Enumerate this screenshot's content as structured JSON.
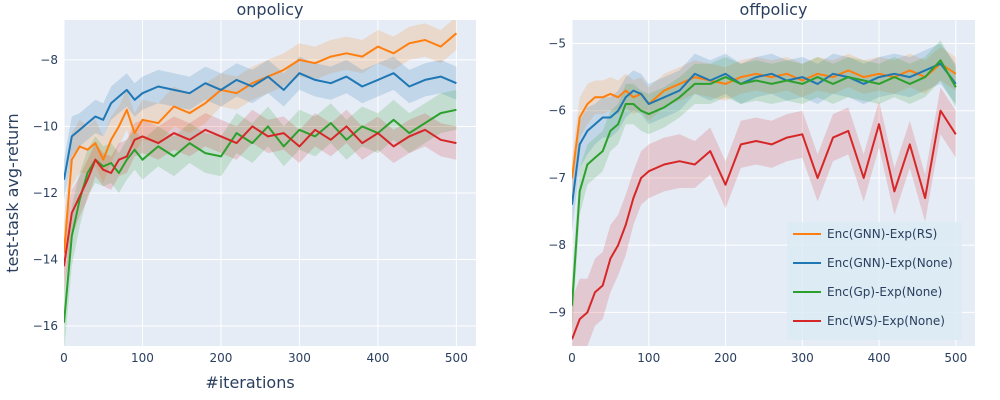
{
  "chart_data": [
    {
      "type": "line",
      "title": "onpolicy",
      "xlabel": "#iterations",
      "ylabel": "test-task avg-return",
      "xlim": [
        0,
        525
      ],
      "ylim": [
        -16.6,
        -6.8
      ],
      "xticks": [
        0,
        100,
        200,
        300,
        400,
        500
      ],
      "yticks": [
        -16,
        -14,
        -12,
        -10,
        -8
      ],
      "xtick_labels": [
        "0",
        "100",
        "200",
        "300",
        "400",
        "500"
      ],
      "ytick_labels": [
        "−16",
        "−14",
        "−12",
        "−10",
        "−8"
      ],
      "grid": true,
      "x": [
        0,
        10,
        20,
        30,
        40,
        50,
        60,
        70,
        80,
        90,
        100,
        120,
        140,
        160,
        180,
        200,
        220,
        240,
        260,
        280,
        300,
        320,
        340,
        360,
        380,
        400,
        420,
        440,
        460,
        480,
        500
      ],
      "series": [
        {
          "name": "Enc(GNN)-Exp(RS)",
          "color": "#ff7f0e",
          "values": [
            -13.8,
            -11.0,
            -10.6,
            -10.7,
            -10.5,
            -11.0,
            -10.4,
            -10.0,
            -9.5,
            -10.2,
            -9.8,
            -9.9,
            -9.4,
            -9.6,
            -9.3,
            -8.9,
            -9.0,
            -8.7,
            -8.5,
            -8.3,
            -8.0,
            -8.1,
            -7.9,
            -7.8,
            -7.9,
            -7.6,
            -7.8,
            -7.5,
            -7.4,
            -7.6,
            -7.2
          ],
          "spread": [
            0.9,
            0.8,
            0.8,
            0.7,
            0.7,
            0.7,
            0.7,
            0.6,
            0.6,
            0.6,
            0.6,
            0.6,
            0.6,
            0.6,
            0.6,
            0.5,
            0.5,
            0.5,
            0.5,
            0.5,
            0.5,
            0.5,
            0.5,
            0.5,
            0.5,
            0.5,
            0.5,
            0.5,
            0.5,
            0.5,
            0.5
          ]
        },
        {
          "name": "Enc(GNN)-Exp(None)",
          "color": "#1f77b4",
          "values": [
            -11.6,
            -10.3,
            -10.1,
            -9.9,
            -9.7,
            -9.8,
            -9.3,
            -9.1,
            -8.9,
            -9.2,
            -9.0,
            -8.8,
            -8.9,
            -9.0,
            -8.7,
            -8.9,
            -8.6,
            -8.8,
            -8.5,
            -8.9,
            -8.4,
            -8.6,
            -8.7,
            -8.5,
            -8.8,
            -8.6,
            -8.4,
            -8.8,
            -8.6,
            -8.5,
            -8.7
          ],
          "spread": [
            0.6,
            0.6,
            0.5,
            0.5,
            0.5,
            0.5,
            0.5,
            0.5,
            0.5,
            0.5,
            0.5,
            0.5,
            0.5,
            0.5,
            0.5,
            0.5,
            0.5,
            0.5,
            0.5,
            0.5,
            0.5,
            0.5,
            0.5,
            0.5,
            0.5,
            0.5,
            0.5,
            0.5,
            0.5,
            0.5,
            0.5
          ]
        },
        {
          "name": "Enc(Gp)-Exp(None)",
          "color": "#2ca02c",
          "values": [
            -15.9,
            -13.3,
            -12.2,
            -11.4,
            -11.0,
            -11.2,
            -11.1,
            -11.4,
            -11.0,
            -10.7,
            -11.0,
            -10.6,
            -10.9,
            -10.5,
            -10.8,
            -10.9,
            -10.2,
            -10.5,
            -10.0,
            -10.6,
            -10.1,
            -10.3,
            -9.9,
            -10.4,
            -10.0,
            -10.2,
            -9.8,
            -10.2,
            -9.9,
            -9.6,
            -9.5
          ],
          "spread": [
            0.9,
            0.9,
            0.8,
            0.7,
            0.7,
            0.6,
            0.6,
            0.6,
            0.6,
            0.6,
            0.6,
            0.6,
            0.6,
            0.6,
            0.6,
            0.6,
            0.6,
            0.6,
            0.6,
            0.6,
            0.6,
            0.6,
            0.6,
            0.6,
            0.6,
            0.6,
            0.6,
            0.6,
            0.6,
            0.6,
            0.6
          ]
        },
        {
          "name": "Enc(WS)-Exp(None)",
          "color": "#d62728",
          "values": [
            -14.2,
            -12.6,
            -12.1,
            -11.6,
            -11.0,
            -11.3,
            -11.4,
            -11.0,
            -10.9,
            -10.4,
            -10.3,
            -10.5,
            -10.2,
            -10.4,
            -10.1,
            -10.3,
            -10.5,
            -10.0,
            -10.3,
            -10.2,
            -10.6,
            -10.1,
            -10.4,
            -10.0,
            -10.5,
            -10.2,
            -10.6,
            -10.3,
            -10.1,
            -10.4,
            -10.5
          ],
          "spread": [
            0.8,
            0.7,
            0.6,
            0.6,
            0.5,
            0.5,
            0.5,
            0.5,
            0.5,
            0.5,
            0.5,
            0.5,
            0.5,
            0.5,
            0.5,
            0.5,
            0.5,
            0.5,
            0.5,
            0.5,
            0.5,
            0.5,
            0.5,
            0.5,
            0.5,
            0.5,
            0.5,
            0.5,
            0.5,
            0.5,
            0.5
          ]
        }
      ]
    },
    {
      "type": "line",
      "title": "offpolicy",
      "xlabel": "",
      "ylabel": "",
      "xlim": [
        0,
        525
      ],
      "ylim": [
        -9.5,
        -4.65
      ],
      "xticks": [
        0,
        100,
        200,
        300,
        400,
        500
      ],
      "yticks": [
        -9,
        -8,
        -7,
        -6,
        -5
      ],
      "xtick_labels": [
        "0",
        "100",
        "200",
        "300",
        "400",
        "500"
      ],
      "ytick_labels": [
        "−9",
        "−8",
        "−7",
        "−6",
        "−5"
      ],
      "grid": true,
      "legend_position": "bottom-right",
      "x": [
        0,
        10,
        20,
        30,
        40,
        50,
        60,
        70,
        80,
        90,
        100,
        120,
        140,
        160,
        180,
        200,
        220,
        240,
        260,
        280,
        300,
        320,
        340,
        360,
        380,
        400,
        420,
        440,
        460,
        480,
        500
      ],
      "series": [
        {
          "name": "Enc(GNN)-Exp(RS)",
          "color": "#ff7f0e",
          "values": [
            -7.0,
            -6.1,
            -5.9,
            -5.8,
            -5.8,
            -5.75,
            -5.8,
            -5.7,
            -5.8,
            -5.75,
            -5.9,
            -5.7,
            -5.6,
            -5.5,
            -5.55,
            -5.6,
            -5.5,
            -5.45,
            -5.5,
            -5.45,
            -5.55,
            -5.45,
            -5.5,
            -5.4,
            -5.5,
            -5.45,
            -5.5,
            -5.4,
            -5.5,
            -5.3,
            -5.45
          ],
          "spread": [
            0.3,
            0.3,
            0.3,
            0.25,
            0.25,
            0.25,
            0.25,
            0.25,
            0.25,
            0.25,
            0.25,
            0.25,
            0.25,
            0.25,
            0.25,
            0.25,
            0.25,
            0.25,
            0.25,
            0.25,
            0.25,
            0.25,
            0.25,
            0.25,
            0.25,
            0.25,
            0.25,
            0.25,
            0.25,
            0.25,
            0.25
          ]
        },
        {
          "name": "Enc(GNN)-Exp(None)",
          "color": "#1f77b4",
          "values": [
            -7.4,
            -6.5,
            -6.3,
            -6.2,
            -6.1,
            -6.1,
            -6.0,
            -5.8,
            -5.7,
            -5.75,
            -5.9,
            -5.8,
            -5.7,
            -5.45,
            -5.55,
            -5.45,
            -5.6,
            -5.5,
            -5.45,
            -5.55,
            -5.5,
            -5.6,
            -5.45,
            -5.5,
            -5.6,
            -5.5,
            -5.45,
            -5.5,
            -5.4,
            -5.3,
            -5.6
          ],
          "spread": [
            0.4,
            0.35,
            0.35,
            0.3,
            0.3,
            0.3,
            0.3,
            0.3,
            0.3,
            0.3,
            0.3,
            0.3,
            0.3,
            0.3,
            0.3,
            0.3,
            0.3,
            0.3,
            0.3,
            0.3,
            0.3,
            0.3,
            0.3,
            0.3,
            0.3,
            0.3,
            0.3,
            0.3,
            0.3,
            0.3,
            0.3
          ]
        },
        {
          "name": "Enc(Gp)-Exp(None)",
          "color": "#2ca02c",
          "values": [
            -8.9,
            -7.2,
            -6.8,
            -6.7,
            -6.6,
            -6.3,
            -6.2,
            -5.9,
            -5.9,
            -6.0,
            -6.05,
            -5.95,
            -5.8,
            -5.6,
            -5.6,
            -5.5,
            -5.6,
            -5.55,
            -5.6,
            -5.55,
            -5.6,
            -5.5,
            -5.6,
            -5.5,
            -5.55,
            -5.6,
            -5.5,
            -5.6,
            -5.5,
            -5.25,
            -5.65
          ],
          "spread": [
            0.4,
            0.35,
            0.3,
            0.3,
            0.3,
            0.3,
            0.3,
            0.3,
            0.3,
            0.3,
            0.3,
            0.3,
            0.3,
            0.3,
            0.3,
            0.3,
            0.3,
            0.3,
            0.3,
            0.3,
            0.3,
            0.3,
            0.3,
            0.3,
            0.3,
            0.3,
            0.3,
            0.3,
            0.3,
            0.3,
            0.3
          ]
        },
        {
          "name": "Enc(WS)-Exp(None)",
          "color": "#d62728",
          "values": [
            -9.4,
            -9.1,
            -9.0,
            -8.7,
            -8.6,
            -8.2,
            -8.0,
            -7.7,
            -7.3,
            -7.0,
            -6.9,
            -6.8,
            -6.75,
            -6.8,
            -6.6,
            -7.1,
            -6.5,
            -6.45,
            -6.5,
            -6.4,
            -6.35,
            -7.0,
            -6.4,
            -6.3,
            -7.0,
            -6.2,
            -7.2,
            -6.5,
            -7.3,
            -6.0,
            -6.35
          ],
          "spread": [
            0.6,
            0.6,
            0.5,
            0.5,
            0.5,
            0.5,
            0.45,
            0.45,
            0.4,
            0.4,
            0.4,
            0.4,
            0.4,
            0.35,
            0.35,
            0.35,
            0.35,
            0.35,
            0.35,
            0.35,
            0.35,
            0.35,
            0.35,
            0.35,
            0.35,
            0.35,
            0.35,
            0.35,
            0.35,
            0.35,
            0.35
          ]
        }
      ]
    }
  ]
}
